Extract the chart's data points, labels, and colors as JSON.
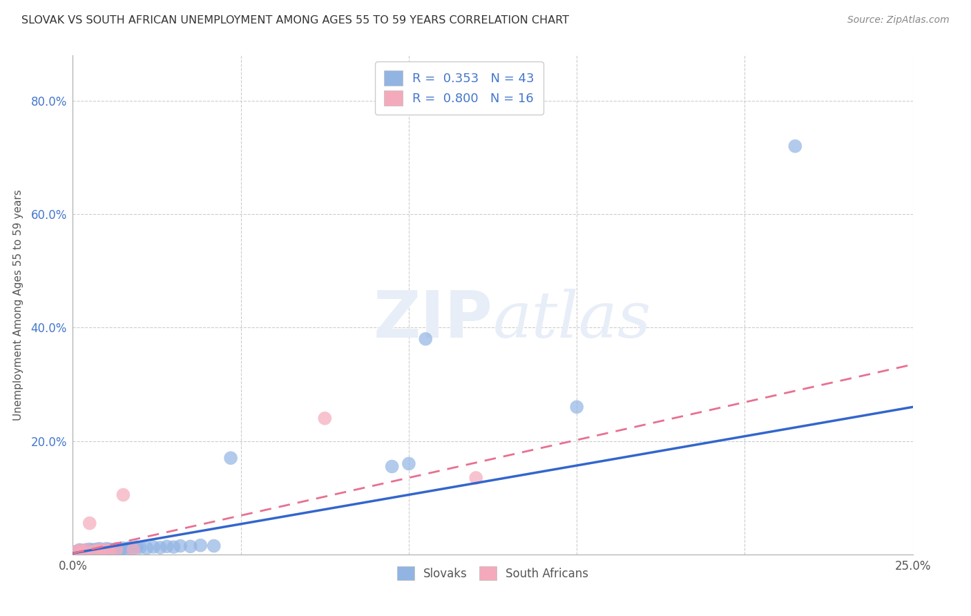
{
  "title": "SLOVAK VS SOUTH AFRICAN UNEMPLOYMENT AMONG AGES 55 TO 59 YEARS CORRELATION CHART",
  "source": "Source: ZipAtlas.com",
  "ylabel": "Unemployment Among Ages 55 to 59 years",
  "xlabel": "",
  "xlim": [
    0.0,
    0.25
  ],
  "ylim": [
    0.0,
    0.88
  ],
  "slovak_R": 0.353,
  "slovak_N": 43,
  "sa_R": 0.8,
  "sa_N": 16,
  "slovak_color": "#92B4E3",
  "sa_color": "#F4AABB",
  "slovak_line_color": "#3366CC",
  "sa_line_color": "#E87090",
  "background_color": "#FFFFFF",
  "grid_color": "#CCCCCC",
  "title_color": "#333333",
  "axis_color": "#4477CC",
  "label_color": "#555555",
  "watermark_color": "#E8EEF8",
  "slovak_x": [
    0.001,
    0.002,
    0.002,
    0.003,
    0.003,
    0.004,
    0.004,
    0.005,
    0.005,
    0.006,
    0.006,
    0.007,
    0.007,
    0.008,
    0.008,
    0.009,
    0.01,
    0.01,
    0.011,
    0.012,
    0.013,
    0.014,
    0.015,
    0.016,
    0.017,
    0.018,
    0.019,
    0.02,
    0.022,
    0.024,
    0.026,
    0.028,
    0.03,
    0.032,
    0.035,
    0.038,
    0.042,
    0.047,
    0.095,
    0.1,
    0.105,
    0.15,
    0.215
  ],
  "slovak_y": [
    0.005,
    0.006,
    0.008,
    0.005,
    0.007,
    0.006,
    0.008,
    0.007,
    0.009,
    0.006,
    0.008,
    0.007,
    0.009,
    0.008,
    0.01,
    0.007,
    0.008,
    0.01,
    0.009,
    0.008,
    0.01,
    0.009,
    0.011,
    0.01,
    0.012,
    0.011,
    0.013,
    0.012,
    0.011,
    0.013,
    0.012,
    0.014,
    0.013,
    0.015,
    0.014,
    0.016,
    0.015,
    0.17,
    0.155,
    0.16,
    0.38,
    0.26,
    0.72
  ],
  "sa_x": [
    0.001,
    0.002,
    0.003,
    0.004,
    0.005,
    0.006,
    0.007,
    0.008,
    0.009,
    0.01,
    0.011,
    0.013,
    0.015,
    0.018,
    0.075,
    0.12
  ],
  "sa_y": [
    0.005,
    0.007,
    0.006,
    0.008,
    0.055,
    0.005,
    0.007,
    0.008,
    0.006,
    0.008,
    0.007,
    0.009,
    0.105,
    0.008,
    0.24,
    0.135
  ],
  "sk_line_x0": 0.0,
  "sk_line_y0": 0.002,
  "sk_line_x1": 0.25,
  "sk_line_y1": 0.26,
  "sa_line_x0": 0.0,
  "sa_line_y0": 0.002,
  "sa_line_x1": 0.25,
  "sa_line_y1": 0.335
}
